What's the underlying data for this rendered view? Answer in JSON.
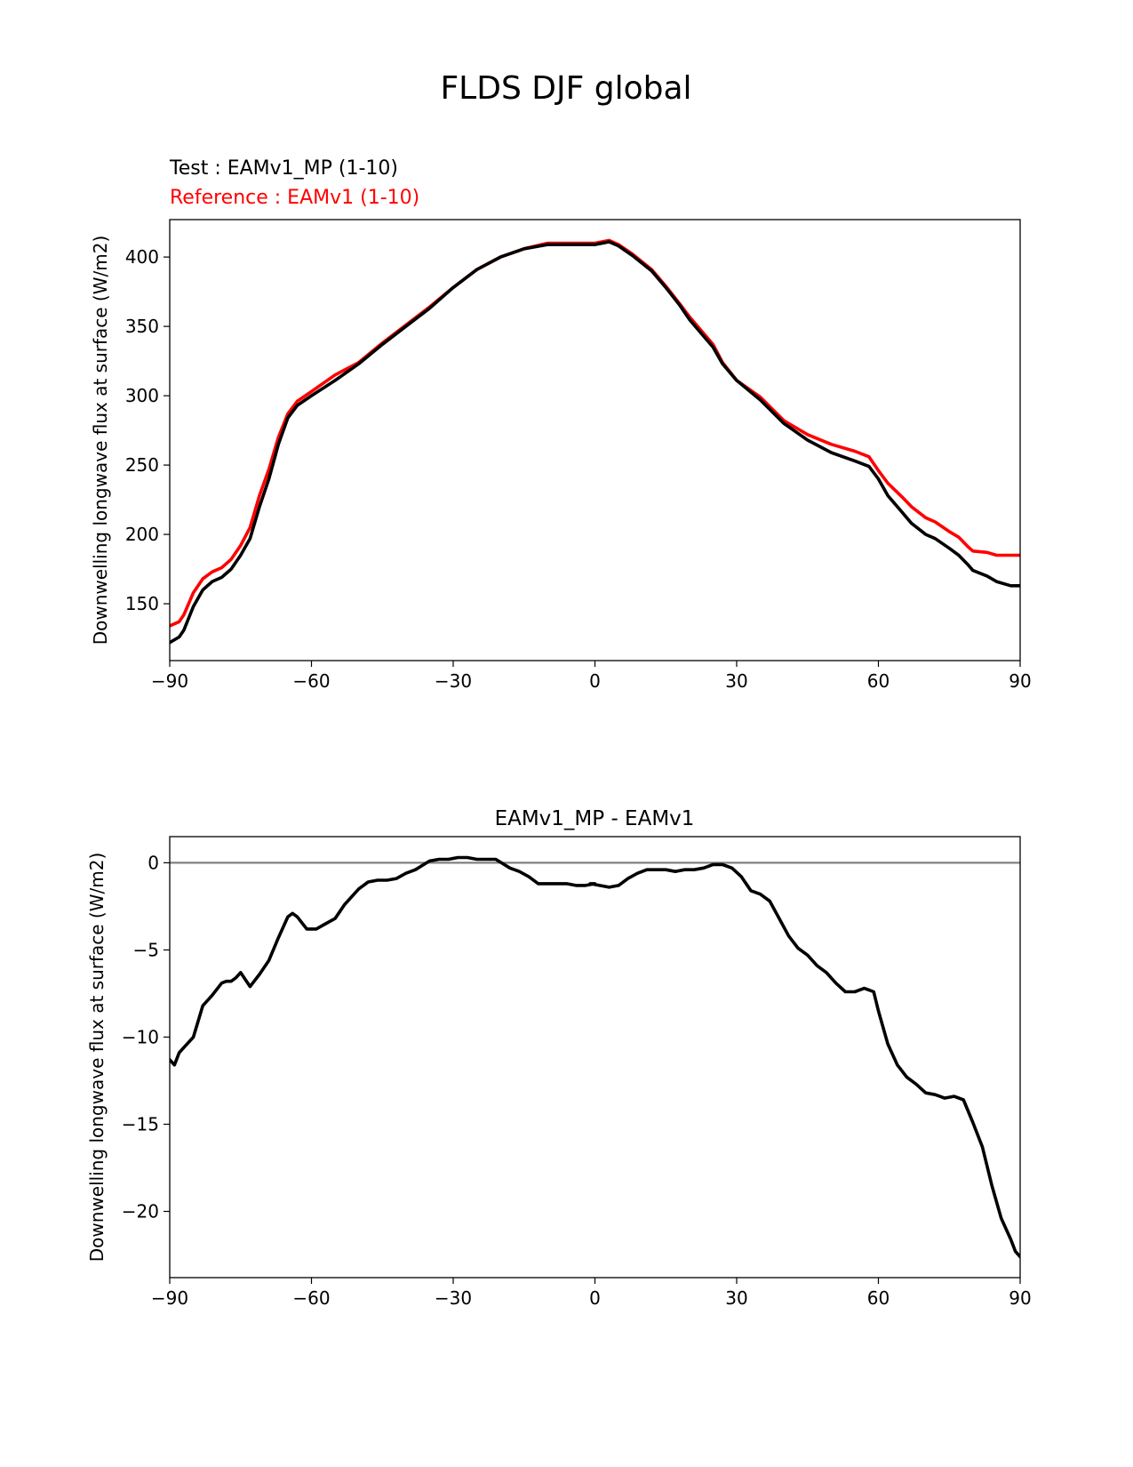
{
  "figure_title": "FLDS DJF global",
  "chart_data": [
    {
      "type": "line",
      "test_label": "Test : EAMv1_MP (1-10)",
      "reference_label": "Reference : EAMv1 (1-10)",
      "xlabel": "",
      "ylabel": "Downwelling longwave flux at surface (W/m2)",
      "xlim": [
        -90,
        90
      ],
      "ylim": [
        109,
        427
      ],
      "xticks": [
        -90,
        -60,
        -30,
        0,
        30,
        60,
        90
      ],
      "xtick_labels": [
        "−90",
        "−60",
        "−30",
        "0",
        "30",
        "60",
        "90"
      ],
      "yticks": [
        150,
        200,
        250,
        300,
        350,
        400
      ],
      "ytick_labels": [
        "150",
        "200",
        "250",
        "300",
        "350",
        "400"
      ],
      "colors": {
        "test": "#000000",
        "reference": "#ff0000"
      },
      "x": [
        -90,
        -88,
        -87,
        -85,
        -83,
        -81,
        -79,
        -77,
        -75,
        -73,
        -71,
        -69,
        -67,
        -65,
        -63,
        -60,
        -55,
        -50,
        -45,
        -40,
        -35,
        -30,
        -25,
        -20,
        -15,
        -10,
        -5,
        0,
        3,
        5,
        8,
        12,
        15,
        18,
        20,
        25,
        27,
        30,
        35,
        40,
        45,
        50,
        55,
        58,
        60,
        62,
        65,
        67,
        70,
        72,
        75,
        77,
        79,
        80,
        83,
        85,
        88,
        90
      ],
      "series": [
        {
          "name": "Test : EAMv1_MP (1-10)",
          "values": [
            122,
            126,
            131,
            148,
            160,
            166,
            169,
            175,
            185,
            197,
            220,
            240,
            265,
            284,
            293,
            300,
            311,
            323,
            337,
            350,
            363,
            378,
            391,
            400,
            406,
            409,
            409,
            409,
            411,
            408,
            401,
            390,
            378,
            365,
            355,
            335,
            323,
            311,
            297,
            280,
            268,
            259,
            253,
            249,
            240,
            228,
            216,
            208,
            200,
            197,
            190,
            185,
            178,
            174,
            170,
            166,
            163,
            163
          ]
        },
        {
          "name": "Reference : EAMv1 (1-10)",
          "values": [
            134,
            137,
            142,
            158,
            168,
            173,
            176,
            182,
            192,
            205,
            228,
            247,
            270,
            287,
            296,
            303,
            315,
            324,
            338,
            351,
            364,
            378,
            391,
            400,
            406,
            410,
            410,
            410,
            412,
            409,
            402,
            391,
            379,
            366,
            357,
            337,
            324,
            311,
            299,
            282,
            272,
            265,
            260,
            256,
            246,
            237,
            227,
            220,
            212,
            209,
            202,
            198,
            191,
            188,
            187,
            185,
            185,
            185
          ]
        }
      ]
    },
    {
      "type": "line",
      "title": "EAMv1_MP - EAMv1",
      "xlabel": "",
      "ylabel": "Downwelling longwave flux at surface (W/m2)",
      "xlim": [
        -90,
        90
      ],
      "ylim": [
        -23.8,
        1.5
      ],
      "xticks": [
        -90,
        -60,
        -30,
        0,
        30,
        60,
        90
      ],
      "xtick_labels": [
        "−90",
        "−60",
        "−30",
        "0",
        "30",
        "60",
        "90"
      ],
      "yticks": [
        0,
        -5,
        -10,
        -15,
        -20
      ],
      "ytick_labels": [
        "0",
        "−5",
        "−10",
        "−15",
        "−20"
      ],
      "zero_line_color": "#808080",
      "x": [
        -90,
        -89,
        -88,
        -87,
        -85,
        -83,
        -81,
        -79,
        -78,
        -77,
        -76,
        -75,
        -73,
        -71,
        -69,
        -67,
        -65,
        -64,
        -63,
        -61,
        -59,
        -57,
        -55,
        -53,
        -50,
        -48,
        -46,
        -44,
        -42,
        -40,
        -38,
        -35,
        -33,
        -31,
        -29,
        -27,
        -25,
        -23,
        -21,
        -18,
        -16,
        -14,
        -12,
        -10,
        -8,
        -6,
        -4,
        -2,
        0,
        -1,
        1,
        3,
        5,
        7,
        9,
        11,
        13,
        15,
        17,
        19,
        21,
        23,
        25,
        27,
        29,
        31,
        33,
        35,
        37,
        39,
        41,
        43,
        45,
        47,
        49,
        51,
        53,
        55,
        57,
        58,
        59,
        60,
        62,
        64,
        66,
        68,
        70,
        72,
        73,
        74,
        76,
        78,
        80,
        82,
        84,
        86,
        88,
        89,
        90
      ],
      "values": [
        -11.3,
        -11.6,
        -10.9,
        -10.6,
        -10,
        -8.2,
        -7.6,
        -6.9,
        -6.8,
        -6.8,
        -6.6,
        -6.3,
        -7.1,
        -6.4,
        -5.6,
        -4.3,
        -3.1,
        -2.9,
        -3.1,
        -3.8,
        -3.8,
        -3.5,
        -3.2,
        -2.4,
        -1.5,
        -1.1,
        -1,
        -1,
        -0.9,
        -0.6,
        -0.4,
        0.1,
        0.2,
        0.2,
        0.3,
        0.3,
        0.2,
        0.2,
        0.2,
        -0.3,
        -0.5,
        -0.8,
        -1.2,
        -1.2,
        -1.2,
        -1.2,
        -1.3,
        -1.3,
        -1.2,
        -1.2,
        -1.3,
        -1.4,
        -1.3,
        -0.9,
        -0.6,
        -0.4,
        -0.4,
        -0.4,
        -0.5,
        -0.4,
        -0.4,
        -0.3,
        -0.1,
        -0.1,
        -0.3,
        -0.8,
        -1.6,
        -1.8,
        -2.2,
        -3.2,
        -4.2,
        -4.9,
        -5.3,
        -5.9,
        -6.3,
        -6.9,
        -7.4,
        -7.4,
        -7.2,
        -7.3,
        -7.4,
        -8.5,
        -10.4,
        -11.6,
        -12.3,
        -12.7,
        -13.2,
        -13.3,
        -13.4,
        -13.5,
        -13.4,
        -13.6,
        -14.9,
        -16.3,
        -18.5,
        -20.4,
        -21.6,
        -22.3,
        -22.6
      ]
    }
  ]
}
